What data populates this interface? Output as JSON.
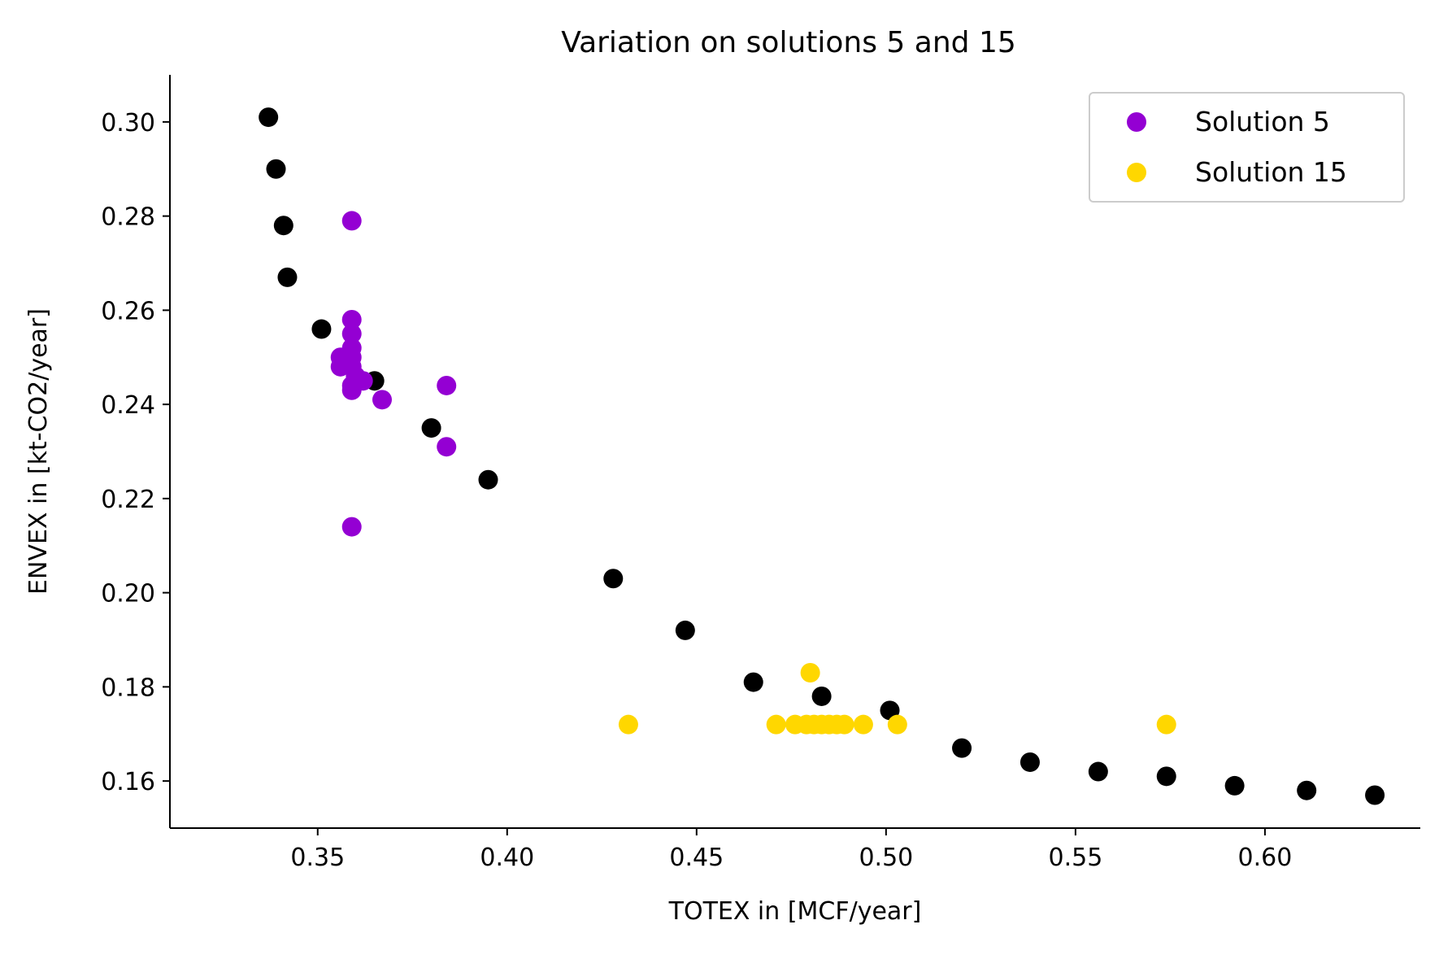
{
  "chart_data": {
    "type": "scatter",
    "title": "Variation on solutions 5 and 15",
    "xlabel": "TOTEX in [MCF/year]",
    "ylabel": "ENVEX in [kt-CO2/year]",
    "xlim": [
      0.311,
      0.641
    ],
    "ylim": [
      0.15,
      0.31
    ],
    "xticks": [
      0.35,
      0.4,
      0.45,
      0.5,
      0.55,
      0.6
    ],
    "xtick_labels": [
      "0.35",
      "0.40",
      "0.45",
      "0.50",
      "0.55",
      "0.60"
    ],
    "yticks": [
      0.16,
      0.18,
      0.2,
      0.22,
      0.24,
      0.26,
      0.28,
      0.3
    ],
    "ytick_labels": [
      "0.16",
      "0.18",
      "0.20",
      "0.22",
      "0.24",
      "0.26",
      "0.28",
      "0.30"
    ],
    "grid": false,
    "legend_position": "top-right",
    "series": [
      {
        "name": "",
        "color": "#000000",
        "points": [
          [
            0.337,
            0.301
          ],
          [
            0.339,
            0.29
          ],
          [
            0.341,
            0.278
          ],
          [
            0.342,
            0.267
          ],
          [
            0.351,
            0.256
          ],
          [
            0.365,
            0.245
          ],
          [
            0.38,
            0.235
          ],
          [
            0.395,
            0.224
          ],
          [
            0.428,
            0.203
          ],
          [
            0.447,
            0.192
          ],
          [
            0.465,
            0.181
          ],
          [
            0.483,
            0.178
          ],
          [
            0.501,
            0.175
          ],
          [
            0.52,
            0.167
          ],
          [
            0.538,
            0.164
          ],
          [
            0.556,
            0.162
          ],
          [
            0.574,
            0.161
          ],
          [
            0.592,
            0.159
          ],
          [
            0.611,
            0.158
          ],
          [
            0.629,
            0.157
          ]
        ]
      },
      {
        "name": "Solution 5",
        "color": "#9400D3",
        "points": [
          [
            0.359,
            0.279
          ],
          [
            0.359,
            0.258
          ],
          [
            0.359,
            0.255
          ],
          [
            0.359,
            0.252
          ],
          [
            0.359,
            0.25
          ],
          [
            0.356,
            0.25
          ],
          [
            0.356,
            0.248
          ],
          [
            0.359,
            0.248
          ],
          [
            0.36,
            0.246
          ],
          [
            0.359,
            0.244
          ],
          [
            0.359,
            0.243
          ],
          [
            0.362,
            0.245
          ],
          [
            0.367,
            0.241
          ],
          [
            0.384,
            0.244
          ],
          [
            0.384,
            0.231
          ],
          [
            0.359,
            0.214
          ]
        ]
      },
      {
        "name": "Solution 15",
        "color": "#FFD700",
        "points": [
          [
            0.432,
            0.172
          ],
          [
            0.471,
            0.172
          ],
          [
            0.476,
            0.172
          ],
          [
            0.479,
            0.172
          ],
          [
            0.481,
            0.172
          ],
          [
            0.483,
            0.172
          ],
          [
            0.485,
            0.172
          ],
          [
            0.487,
            0.172
          ],
          [
            0.489,
            0.172
          ],
          [
            0.494,
            0.172
          ],
          [
            0.48,
            0.183
          ],
          [
            0.503,
            0.172
          ],
          [
            0.574,
            0.172
          ]
        ]
      }
    ]
  }
}
